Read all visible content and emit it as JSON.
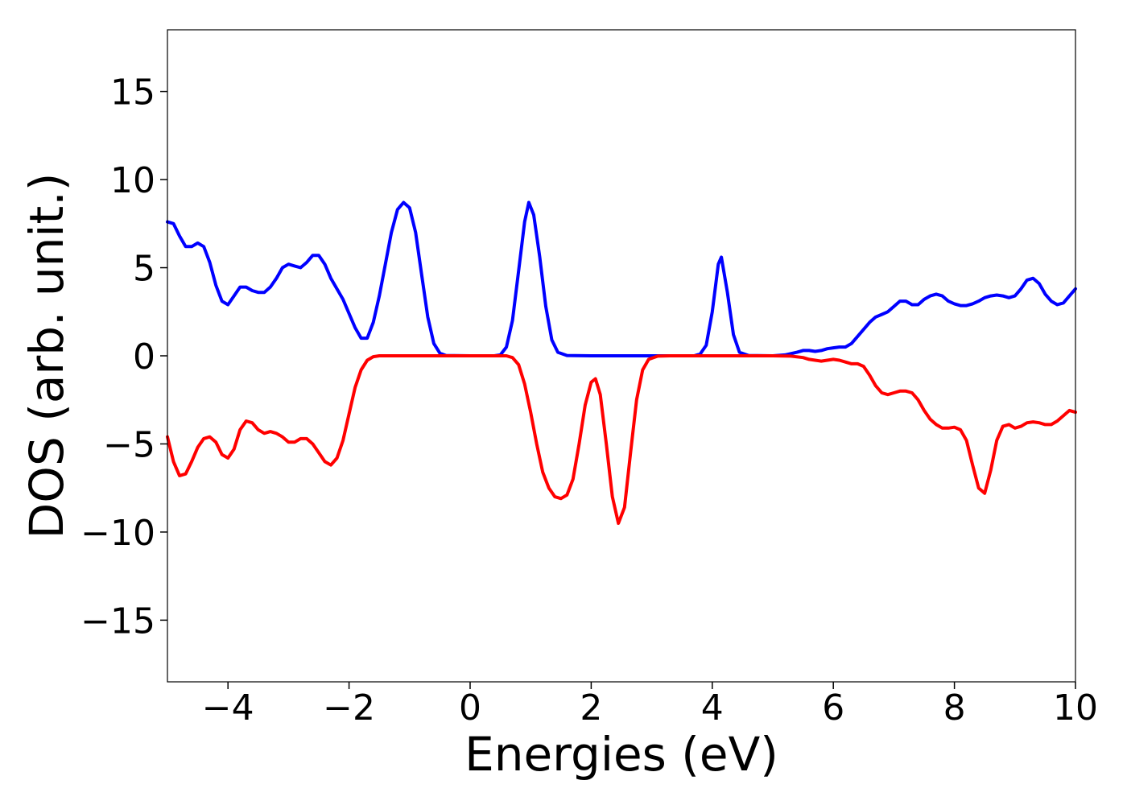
{
  "chart_data": {
    "type": "line",
    "xlabel": "Energies (eV)",
    "ylabel": "DOS (arb. unit.)",
    "xlim": [
      -5,
      10
    ],
    "ylim": [
      -18.5,
      18.5
    ],
    "x_ticks": [
      -4,
      -2,
      0,
      2,
      4,
      6,
      8,
      10
    ],
    "x_tick_labels": [
      "−4",
      "−2",
      "0",
      "2",
      "4",
      "6",
      "8",
      "10"
    ],
    "y_ticks": [
      -15,
      -10,
      -5,
      0,
      5,
      10,
      15
    ],
    "y_tick_labels": [
      "−15",
      "−10",
      "−5",
      "0",
      "5",
      "10",
      "15"
    ],
    "grid": false,
    "series": [
      {
        "color": "#0000ff",
        "points": [
          [
            -5.0,
            7.6
          ],
          [
            -4.9,
            7.5
          ],
          [
            -4.8,
            6.8
          ],
          [
            -4.7,
            6.2
          ],
          [
            -4.6,
            6.2
          ],
          [
            -4.5,
            6.4
          ],
          [
            -4.4,
            6.2
          ],
          [
            -4.3,
            5.3
          ],
          [
            -4.2,
            4.0
          ],
          [
            -4.1,
            3.1
          ],
          [
            -4.0,
            2.9
          ],
          [
            -3.9,
            3.4
          ],
          [
            -3.8,
            3.9
          ],
          [
            -3.7,
            3.9
          ],
          [
            -3.6,
            3.7
          ],
          [
            -3.5,
            3.6
          ],
          [
            -3.4,
            3.6
          ],
          [
            -3.3,
            3.9
          ],
          [
            -3.2,
            4.4
          ],
          [
            -3.1,
            5.0
          ],
          [
            -3.0,
            5.2
          ],
          [
            -2.9,
            5.1
          ],
          [
            -2.8,
            5.0
          ],
          [
            -2.7,
            5.3
          ],
          [
            -2.6,
            5.7
          ],
          [
            -2.5,
            5.7
          ],
          [
            -2.4,
            5.2
          ],
          [
            -2.3,
            4.4
          ],
          [
            -2.1,
            3.2
          ],
          [
            -1.9,
            1.6
          ],
          [
            -1.8,
            1.0
          ],
          [
            -1.7,
            1.0
          ],
          [
            -1.6,
            1.9
          ],
          [
            -1.5,
            3.4
          ],
          [
            -1.4,
            5.2
          ],
          [
            -1.3,
            7.0
          ],
          [
            -1.2,
            8.3
          ],
          [
            -1.1,
            8.7
          ],
          [
            -1.0,
            8.4
          ],
          [
            -0.9,
            7.0
          ],
          [
            -0.8,
            4.6
          ],
          [
            -0.7,
            2.2
          ],
          [
            -0.6,
            0.7
          ],
          [
            -0.5,
            0.15
          ],
          [
            -0.4,
            0.02
          ],
          [
            0.0,
            0.0
          ],
          [
            0.4,
            0.0
          ],
          [
            0.5,
            0.05
          ],
          [
            0.6,
            0.5
          ],
          [
            0.7,
            2.0
          ],
          [
            0.8,
            4.8
          ],
          [
            0.9,
            7.6
          ],
          [
            0.97,
            8.7
          ],
          [
            1.05,
            8.0
          ],
          [
            1.15,
            5.6
          ],
          [
            1.25,
            2.8
          ],
          [
            1.35,
            0.9
          ],
          [
            1.45,
            0.2
          ],
          [
            1.6,
            0.02
          ],
          [
            2.0,
            0.0
          ],
          [
            3.0,
            0.0
          ],
          [
            3.7,
            0.0
          ],
          [
            3.8,
            0.1
          ],
          [
            3.9,
            0.6
          ],
          [
            4.0,
            2.5
          ],
          [
            4.1,
            5.2
          ],
          [
            4.15,
            5.6
          ],
          [
            4.25,
            3.6
          ],
          [
            4.35,
            1.2
          ],
          [
            4.45,
            0.2
          ],
          [
            4.6,
            0.02
          ],
          [
            5.0,
            0.0
          ],
          [
            5.2,
            0.05
          ],
          [
            5.4,
            0.2
          ],
          [
            5.5,
            0.3
          ],
          [
            5.6,
            0.3
          ],
          [
            5.7,
            0.25
          ],
          [
            5.8,
            0.3
          ],
          [
            5.9,
            0.4
          ],
          [
            6.0,
            0.45
          ],
          [
            6.1,
            0.5
          ],
          [
            6.2,
            0.5
          ],
          [
            6.3,
            0.7
          ],
          [
            6.4,
            1.1
          ],
          [
            6.5,
            1.5
          ],
          [
            6.6,
            1.9
          ],
          [
            6.7,
            2.2
          ],
          [
            6.8,
            2.35
          ],
          [
            6.9,
            2.5
          ],
          [
            7.0,
            2.8
          ],
          [
            7.1,
            3.1
          ],
          [
            7.2,
            3.1
          ],
          [
            7.3,
            2.9
          ],
          [
            7.4,
            2.9
          ],
          [
            7.5,
            3.2
          ],
          [
            7.6,
            3.4
          ],
          [
            7.7,
            3.5
          ],
          [
            7.8,
            3.4
          ],
          [
            7.9,
            3.1
          ],
          [
            8.0,
            2.95
          ],
          [
            8.1,
            2.85
          ],
          [
            8.2,
            2.85
          ],
          [
            8.3,
            2.95
          ],
          [
            8.4,
            3.1
          ],
          [
            8.5,
            3.3
          ],
          [
            8.6,
            3.4
          ],
          [
            8.7,
            3.45
          ],
          [
            8.8,
            3.4
          ],
          [
            8.9,
            3.3
          ],
          [
            9.0,
            3.4
          ],
          [
            9.1,
            3.8
          ],
          [
            9.2,
            4.3
          ],
          [
            9.3,
            4.4
          ],
          [
            9.4,
            4.1
          ],
          [
            9.5,
            3.5
          ],
          [
            9.6,
            3.1
          ],
          [
            9.7,
            2.9
          ],
          [
            9.8,
            3.0
          ],
          [
            9.9,
            3.4
          ],
          [
            10.0,
            3.8
          ]
        ]
      },
      {
        "color": "#ff0000",
        "points": [
          [
            -5.0,
            -4.6
          ],
          [
            -4.9,
            -6.0
          ],
          [
            -4.8,
            -6.8
          ],
          [
            -4.7,
            -6.7
          ],
          [
            -4.6,
            -6.0
          ],
          [
            -4.5,
            -5.2
          ],
          [
            -4.4,
            -4.7
          ],
          [
            -4.3,
            -4.6
          ],
          [
            -4.2,
            -4.9
          ],
          [
            -4.1,
            -5.6
          ],
          [
            -4.0,
            -5.8
          ],
          [
            -3.9,
            -5.3
          ],
          [
            -3.8,
            -4.2
          ],
          [
            -3.7,
            -3.7
          ],
          [
            -3.6,
            -3.8
          ],
          [
            -3.5,
            -4.2
          ],
          [
            -3.4,
            -4.4
          ],
          [
            -3.3,
            -4.3
          ],
          [
            -3.2,
            -4.4
          ],
          [
            -3.1,
            -4.6
          ],
          [
            -3.0,
            -4.9
          ],
          [
            -2.9,
            -4.9
          ],
          [
            -2.8,
            -4.7
          ],
          [
            -2.7,
            -4.7
          ],
          [
            -2.6,
            -5.0
          ],
          [
            -2.5,
            -5.5
          ],
          [
            -2.4,
            -6.0
          ],
          [
            -2.3,
            -6.2
          ],
          [
            -2.2,
            -5.8
          ],
          [
            -2.1,
            -4.8
          ],
          [
            -2.0,
            -3.3
          ],
          [
            -1.9,
            -1.8
          ],
          [
            -1.8,
            -0.8
          ],
          [
            -1.7,
            -0.25
          ],
          [
            -1.6,
            -0.05
          ],
          [
            -1.5,
            0.0
          ],
          [
            0.0,
            0.0
          ],
          [
            0.6,
            0.0
          ],
          [
            0.7,
            -0.1
          ],
          [
            0.8,
            -0.5
          ],
          [
            0.9,
            -1.6
          ],
          [
            1.0,
            -3.2
          ],
          [
            1.1,
            -5.0
          ],
          [
            1.2,
            -6.6
          ],
          [
            1.3,
            -7.5
          ],
          [
            1.4,
            -8.0
          ],
          [
            1.5,
            -8.1
          ],
          [
            1.6,
            -7.9
          ],
          [
            1.7,
            -7.0
          ],
          [
            1.8,
            -5.0
          ],
          [
            1.9,
            -2.8
          ],
          [
            2.0,
            -1.5
          ],
          [
            2.07,
            -1.3
          ],
          [
            2.15,
            -2.2
          ],
          [
            2.25,
            -5.0
          ],
          [
            2.35,
            -8.0
          ],
          [
            2.45,
            -9.5
          ],
          [
            2.55,
            -8.6
          ],
          [
            2.65,
            -5.5
          ],
          [
            2.75,
            -2.5
          ],
          [
            2.85,
            -0.8
          ],
          [
            2.95,
            -0.2
          ],
          [
            3.1,
            -0.02
          ],
          [
            3.3,
            0.0
          ],
          [
            5.0,
            0.0
          ],
          [
            5.3,
            -0.02
          ],
          [
            5.5,
            -0.1
          ],
          [
            5.6,
            -0.2
          ],
          [
            5.7,
            -0.25
          ],
          [
            5.8,
            -0.3
          ],
          [
            5.9,
            -0.25
          ],
          [
            6.0,
            -0.2
          ],
          [
            6.1,
            -0.25
          ],
          [
            6.2,
            -0.35
          ],
          [
            6.3,
            -0.45
          ],
          [
            6.4,
            -0.45
          ],
          [
            6.5,
            -0.6
          ],
          [
            6.6,
            -1.1
          ],
          [
            6.7,
            -1.7
          ],
          [
            6.8,
            -2.1
          ],
          [
            6.9,
            -2.2
          ],
          [
            7.0,
            -2.1
          ],
          [
            7.1,
            -2.0
          ],
          [
            7.2,
            -2.0
          ],
          [
            7.3,
            -2.1
          ],
          [
            7.4,
            -2.5
          ],
          [
            7.5,
            -3.1
          ],
          [
            7.6,
            -3.6
          ],
          [
            7.7,
            -3.9
          ],
          [
            7.8,
            -4.1
          ],
          [
            7.9,
            -4.1
          ],
          [
            8.0,
            -4.05
          ],
          [
            8.1,
            -4.2
          ],
          [
            8.2,
            -4.8
          ],
          [
            8.3,
            -6.2
          ],
          [
            8.4,
            -7.5
          ],
          [
            8.5,
            -7.8
          ],
          [
            8.6,
            -6.5
          ],
          [
            8.7,
            -4.8
          ],
          [
            8.8,
            -4.0
          ],
          [
            8.9,
            -3.9
          ],
          [
            9.0,
            -4.1
          ],
          [
            9.1,
            -4.0
          ],
          [
            9.2,
            -3.8
          ],
          [
            9.3,
            -3.75
          ],
          [
            9.4,
            -3.8
          ],
          [
            9.5,
            -3.9
          ],
          [
            9.6,
            -3.9
          ],
          [
            9.7,
            -3.7
          ],
          [
            9.8,
            -3.4
          ],
          [
            9.9,
            -3.1
          ],
          [
            10.0,
            -3.2
          ]
        ]
      }
    ]
  }
}
